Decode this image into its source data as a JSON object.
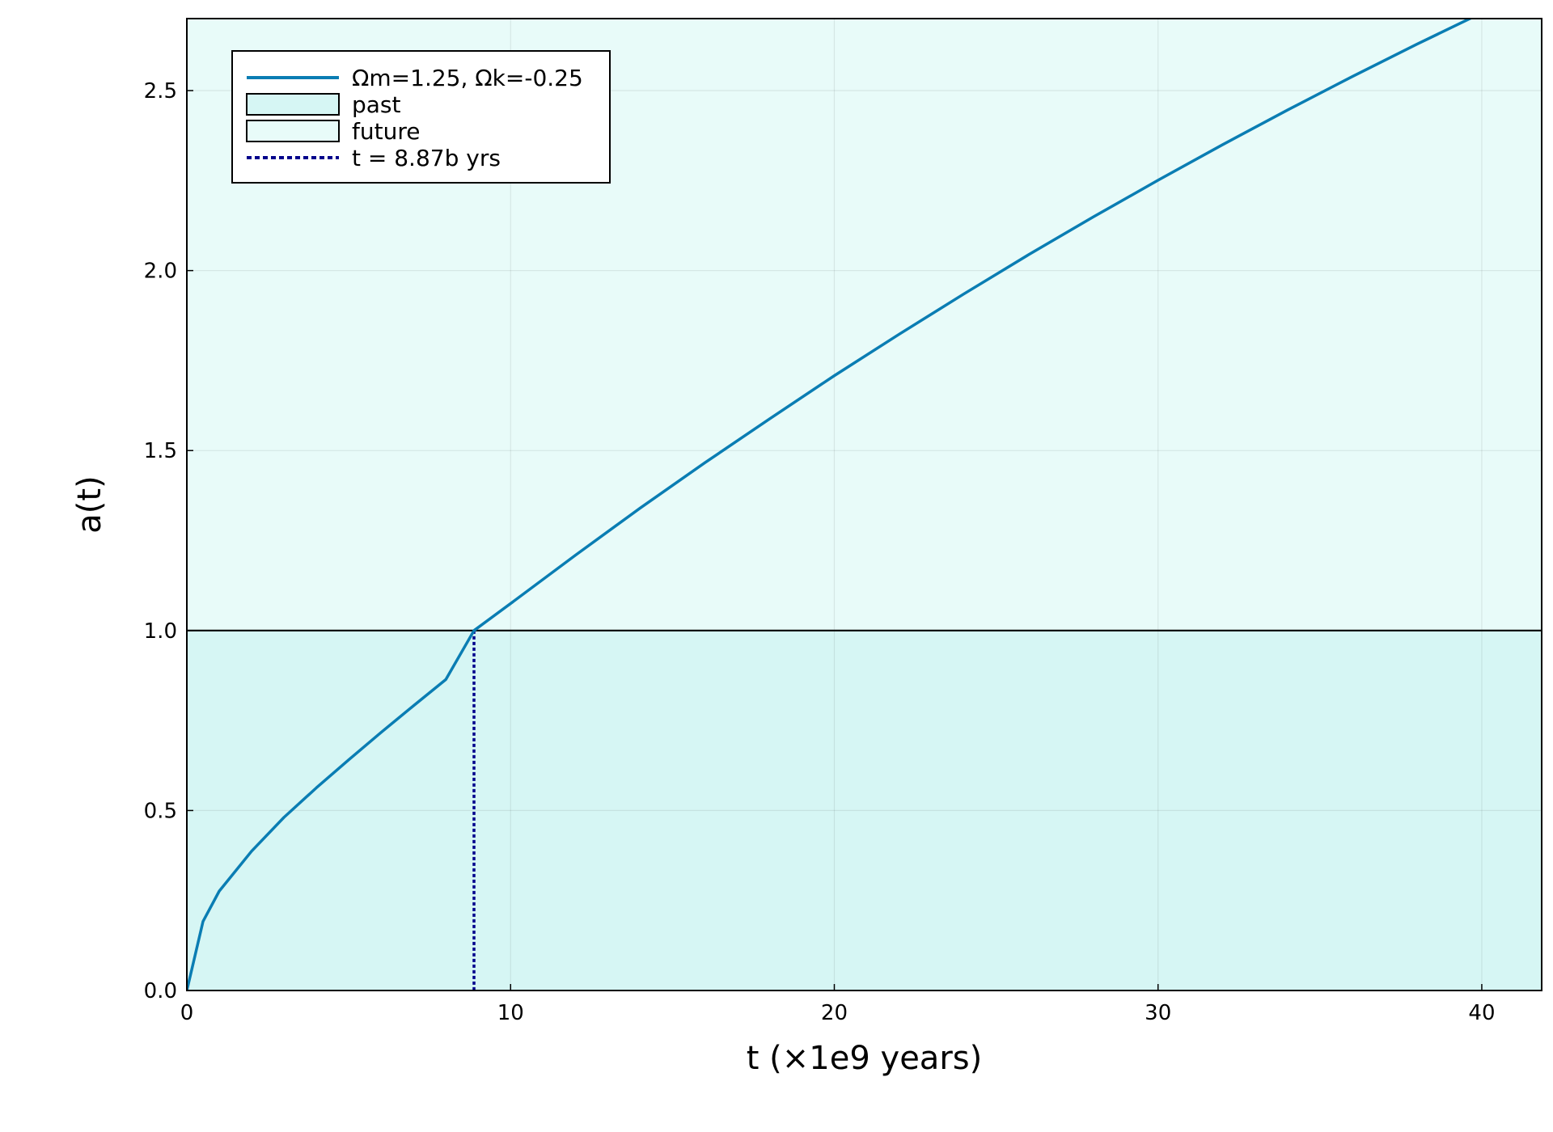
{
  "chart_data": {
    "type": "line",
    "title": "",
    "xlabel": "t (×1e9 years)",
    "ylabel": "a(t)",
    "xlim": [
      0,
      41.85
    ],
    "ylim": [
      0,
      2.7
    ],
    "xticks": [
      0,
      10,
      20,
      30,
      40
    ],
    "xtick_labels": [
      "0",
      "10",
      "20",
      "30",
      "40"
    ],
    "yticks": [
      0.0,
      0.5,
      1.0,
      1.5,
      2.0,
      2.5
    ],
    "ytick_labels": [
      "0.0",
      "0.5",
      "1.0",
      "1.5",
      "2.0",
      "2.5"
    ],
    "grid": true,
    "legend_position": "top-left",
    "today_t": 8.87,
    "today_a": 1.0,
    "series": [
      {
        "name": "Ωm=1.25, Ωk=-0.25",
        "color": "#0a7db3",
        "x": [
          0,
          0.5,
          1,
          2,
          3,
          4,
          5,
          6,
          7,
          8,
          8.87,
          10,
          12,
          14,
          16,
          18,
          20,
          22,
          24,
          26,
          28,
          30,
          32,
          34,
          36,
          38,
          40,
          41.85
        ],
        "y": [
          0,
          0.192,
          0.276,
          0.387,
          0.481,
          0.563,
          0.641,
          0.717,
          0.791,
          0.864,
          1.0,
          1.075,
          1.209,
          1.34,
          1.466,
          1.588,
          1.708,
          1.823,
          1.935,
          2.044,
          2.149,
          2.251,
          2.35,
          2.446,
          2.539,
          2.629,
          2.716,
          2.794
        ]
      }
    ],
    "legend": [
      {
        "label": "Ωm=1.25, Ωk=-0.25",
        "kind": "line",
        "color": "#0a7db3"
      },
      {
        "label": "past",
        "kind": "patch",
        "color": "#d6f6f4"
      },
      {
        "label": "future",
        "kind": "patch",
        "color": "#e8fbf9"
      },
      {
        "label": "t = 8.87b yrs",
        "kind": "dotted-line",
        "color": "#00008b"
      }
    ],
    "regions": [
      {
        "name": "past",
        "y_from": 0,
        "y_to": 1.0,
        "color": "#d6f6f4"
      },
      {
        "name": "future",
        "y_from": 1.0,
        "y_to": 2.7,
        "color": "#e8fbf9"
      }
    ],
    "reference_line": {
      "y": 1.0,
      "color": "#000000"
    }
  }
}
